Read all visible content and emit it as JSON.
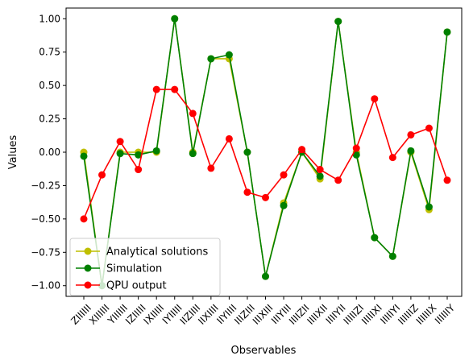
{
  "chart_data": {
    "type": "line",
    "title": "",
    "xlabel": "Observables",
    "ylabel": "Values",
    "ylim": [
      -1.08,
      1.08
    ],
    "yticks": [
      -1.0,
      -0.75,
      -0.5,
      -0.25,
      0.0,
      0.25,
      0.5,
      0.75,
      1.0
    ],
    "ytick_labels": [
      "−1.00",
      "−0.75",
      "−0.50",
      "−0.25",
      "0.00",
      "0.25",
      "0.50",
      "0.75",
      "1.00"
    ],
    "grid": false,
    "legend_position": "lower-left",
    "categories": [
      "ZIIIIII",
      "XIIIIII",
      "YIIIIII",
      "IZIIIII",
      "IXIIIII",
      "IYIIIII",
      "IIZIIII",
      "IIXIIII",
      "IIYIIII",
      "IIIZIII",
      "IIIXIII",
      "IIIYIII",
      "IIIIZII",
      "IIIIXII",
      "IIIIYII",
      "IIIIIZI",
      "IIIIIXI",
      "IIIIIYI",
      "IIIIIIZ",
      "IIIIIIX",
      "IIIIIIY"
    ],
    "series": [
      {
        "name": "Analytical solutions",
        "color": "#bfbf00",
        "marker": "circle",
        "values": [
          0.0,
          -1.0,
          0.0,
          0.0,
          0.0,
          1.0,
          0.0,
          0.7,
          0.7,
          0.0,
          -0.93,
          -0.38,
          0.0,
          -0.2,
          0.98,
          0.0,
          -0.64,
          -0.78,
          0.0,
          -0.43,
          0.9
        ]
      },
      {
        "name": "Simulation",
        "color": "#008000",
        "marker": "circle",
        "values": [
          -0.03,
          -1.0,
          -0.01,
          -0.02,
          0.01,
          1.0,
          -0.01,
          0.7,
          0.73,
          0.0,
          -0.93,
          -0.4,
          0.0,
          -0.18,
          0.98,
          -0.02,
          -0.64,
          -0.78,
          0.01,
          -0.41,
          0.9
        ]
      },
      {
        "name": "QPU output",
        "color": "#ff0000",
        "marker": "circle",
        "values": [
          -0.5,
          -0.17,
          0.08,
          -0.13,
          0.47,
          0.47,
          0.29,
          -0.12,
          0.1,
          -0.3,
          -0.34,
          -0.17,
          0.02,
          -0.13,
          -0.21,
          0.03,
          0.4,
          -0.04,
          0.13,
          0.18,
          -0.21
        ]
      }
    ]
  }
}
